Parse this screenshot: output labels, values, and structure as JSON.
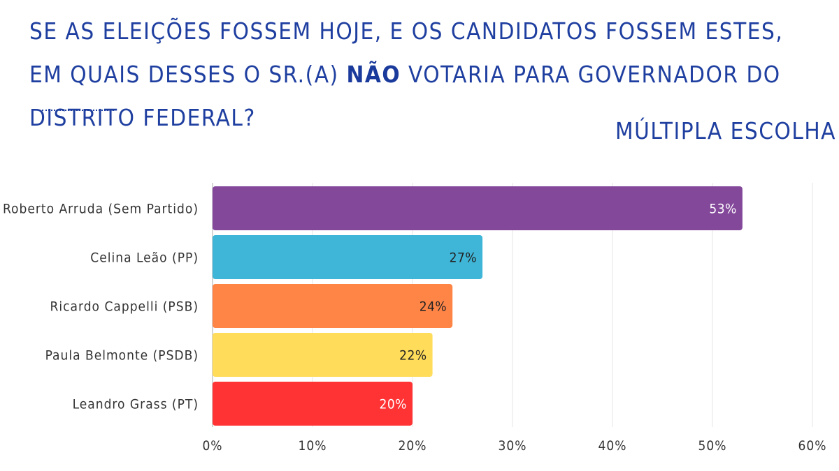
{
  "title": {
    "before": "SE AS ELEIÇÕES FOSSEM HOJE, E OS CANDIDATOS FOSSEM ESTES, EM QUAIS DESSES O SR.(A) ",
    "highlight": "NÃO",
    "after": " VOTARIA PARA GOVERNADOR DO DISTRITO FEDERAL?"
  },
  "subtitle": "MÚLTIPLA ESCOLHA",
  "chart_data": {
    "type": "bar",
    "orientation": "horizontal",
    "categories": [
      "José Roberto Arruda (Sem Partido)",
      "Celina Leão (PP)",
      "Ricardo Cappelli (PSB)",
      "Paula Belmonte (PSDB)",
      "Leandro Grass (PT)"
    ],
    "values": [
      53,
      27,
      24,
      22,
      20
    ],
    "data_labels": [
      "53%",
      "27%",
      "24%",
      "22%",
      "20%"
    ],
    "colors": [
      "#84489b",
      "#3fb5d7",
      "#ff8547",
      "#ffdc5a",
      "#ff3334"
    ],
    "label_colors": [
      "#ffffff",
      "#222222",
      "#222222",
      "#222222",
      "#ffffff"
    ],
    "xlim": [
      0,
      60
    ],
    "x_ticks": [
      0,
      10,
      20,
      30,
      40,
      50,
      60
    ],
    "x_tick_labels": [
      "0%",
      "10%",
      "20%",
      "30%",
      "40%",
      "50%",
      "60%"
    ],
    "grid": true
  }
}
